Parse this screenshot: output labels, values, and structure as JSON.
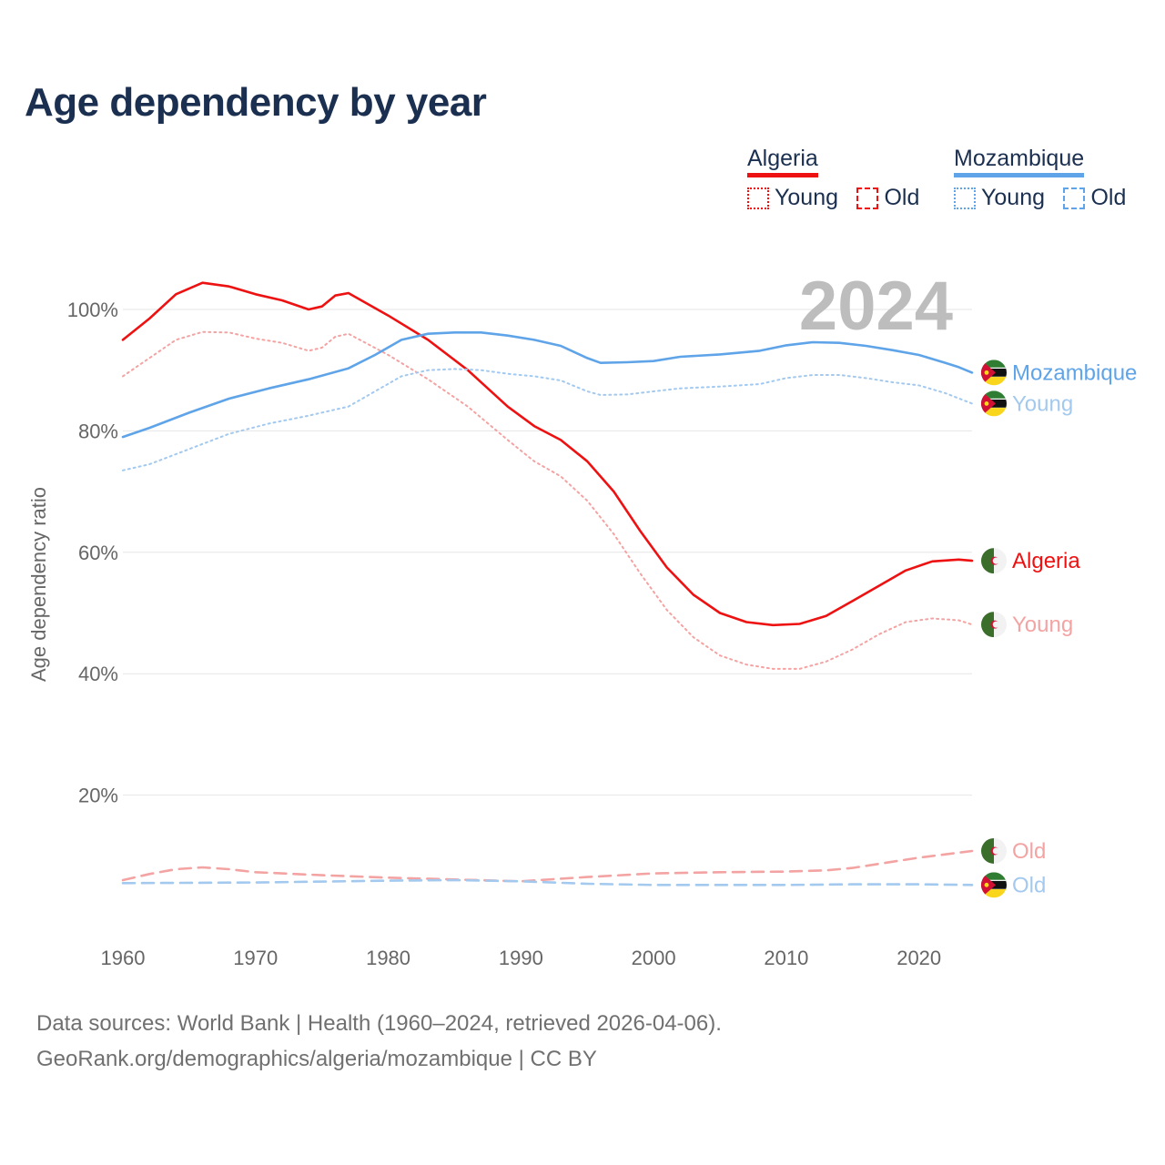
{
  "title": "Age dependency by year",
  "legend": {
    "groups": [
      {
        "name": "Algeria",
        "color": "#ee1111",
        "items": [
          {
            "label": "Young",
            "style": "dotted",
            "color": "#ee1111"
          },
          {
            "label": "Old",
            "style": "dashed",
            "color": "#ee1111"
          }
        ]
      },
      {
        "name": "Mozambique",
        "color": "#5fa4e8",
        "items": [
          {
            "label": "Young",
            "style": "dotted",
            "color": "#5fa4e8"
          },
          {
            "label": "Old",
            "style": "dashed",
            "color": "#5fa4e8"
          }
        ]
      }
    ]
  },
  "footer": {
    "line1": "Data sources: World Bank | Health (1960–2024, retrieved 2026-04-06).",
    "line2": "GeoRank.org/demographics/algeria/mozambique | CC BY"
  },
  "flag_icons": {
    "Algeria": "algeria-flag-icon",
    "Mozambique": "mozambique-flag-icon"
  },
  "chart_data": {
    "type": "line",
    "title": "Age dependency by year",
    "ylabel": "Age dependency ratio",
    "xlabel": "",
    "year_label": "2024",
    "xlim": [
      1960,
      2024
    ],
    "ylim": [
      0,
      110
    ],
    "x_ticks": [
      1960,
      1970,
      1980,
      1990,
      2000,
      2010,
      2020
    ],
    "y_ticks": [
      20,
      40,
      60,
      80,
      100
    ],
    "y_tick_labels": [
      "20%",
      "40%",
      "60%",
      "80%",
      "100%"
    ],
    "grid": true,
    "series": [
      {
        "name": "Algeria",
        "label": "Algeria",
        "country": "Algeria",
        "style": "solid",
        "color": "#ee1111",
        "points": [
          [
            1960,
            95
          ],
          [
            1962,
            98.5
          ],
          [
            1964,
            102.5
          ],
          [
            1966,
            104.4
          ],
          [
            1968,
            103.8
          ],
          [
            1970,
            102.5
          ],
          [
            1972,
            101.5
          ],
          [
            1974,
            100
          ],
          [
            1975,
            100.5
          ],
          [
            1976,
            102.3
          ],
          [
            1977,
            102.7
          ],
          [
            1980,
            99
          ],
          [
            1983,
            95
          ],
          [
            1986,
            90
          ],
          [
            1989,
            84
          ],
          [
            1991,
            80.8
          ],
          [
            1993,
            78.5
          ],
          [
            1995,
            75
          ],
          [
            1997,
            70
          ],
          [
            1999,
            63.5
          ],
          [
            2001,
            57.5
          ],
          [
            2003,
            53
          ],
          [
            2005,
            50
          ],
          [
            2007,
            48.5
          ],
          [
            2009,
            48
          ],
          [
            2011,
            48.2
          ],
          [
            2013,
            49.5
          ],
          [
            2015,
            52
          ],
          [
            2017,
            54.5
          ],
          [
            2019,
            57
          ],
          [
            2021,
            58.5
          ],
          [
            2023,
            58.8
          ],
          [
            2024,
            58.6
          ]
        ]
      },
      {
        "name": "Algeria Young",
        "label": "Young",
        "country": "Algeria",
        "style": "dotted",
        "color": "#f4a3a3",
        "points": [
          [
            1960,
            89
          ],
          [
            1962,
            92
          ],
          [
            1964,
            95
          ],
          [
            1966,
            96.3
          ],
          [
            1968,
            96.2
          ],
          [
            1970,
            95.2
          ],
          [
            1972,
            94.5
          ],
          [
            1974,
            93.2
          ],
          [
            1975,
            93.7
          ],
          [
            1976,
            95.5
          ],
          [
            1977,
            96
          ],
          [
            1980,
            92.5
          ],
          [
            1983,
            88.5
          ],
          [
            1986,
            84
          ],
          [
            1989,
            78.5
          ],
          [
            1991,
            75
          ],
          [
            1993,
            72.5
          ],
          [
            1995,
            68.5
          ],
          [
            1997,
            63
          ],
          [
            1999,
            56.5
          ],
          [
            2001,
            50.5
          ],
          [
            2003,
            46
          ],
          [
            2005,
            43
          ],
          [
            2007,
            41.5
          ],
          [
            2009,
            40.8
          ],
          [
            2011,
            40.8
          ],
          [
            2013,
            42
          ],
          [
            2015,
            44
          ],
          [
            2017,
            46.5
          ],
          [
            2019,
            48.5
          ],
          [
            2021,
            49.1
          ],
          [
            2023,
            48.8
          ],
          [
            2024,
            48.1
          ]
        ]
      },
      {
        "name": "Algeria Old",
        "label": "Old",
        "country": "Algeria",
        "style": "dashed",
        "color": "#f4a3a3",
        "points": [
          [
            1960,
            6
          ],
          [
            1962,
            7
          ],
          [
            1964,
            7.8
          ],
          [
            1966,
            8.1
          ],
          [
            1968,
            7.8
          ],
          [
            1970,
            7.3
          ],
          [
            1975,
            6.8
          ],
          [
            1980,
            6.4
          ],
          [
            1985,
            6.1
          ],
          [
            1990,
            5.8
          ],
          [
            1995,
            6.5
          ],
          [
            2000,
            7.1
          ],
          [
            2005,
            7.3
          ],
          [
            2010,
            7.4
          ],
          [
            2013,
            7.6
          ],
          [
            2015,
            8
          ],
          [
            2020,
            9.7
          ],
          [
            2024,
            10.8
          ]
        ]
      },
      {
        "name": "Mozambique",
        "label": "Mozambique",
        "country": "Mozambique",
        "style": "solid",
        "color": "#5fa4e8",
        "points": [
          [
            1960,
            79
          ],
          [
            1962,
            80.5
          ],
          [
            1965,
            83
          ],
          [
            1968,
            85.3
          ],
          [
            1971,
            87
          ],
          [
            1974,
            88.5
          ],
          [
            1977,
            90.3
          ],
          [
            1979,
            92.5
          ],
          [
            1981,
            95
          ],
          [
            1983,
            96
          ],
          [
            1985,
            96.2
          ],
          [
            1987,
            96.2
          ],
          [
            1989,
            95.7
          ],
          [
            1991,
            95
          ],
          [
            1993,
            94
          ],
          [
            1995,
            92
          ],
          [
            1996,
            91.2
          ],
          [
            1998,
            91.3
          ],
          [
            2000,
            91.5
          ],
          [
            2002,
            92.2
          ],
          [
            2005,
            92.6
          ],
          [
            2008,
            93.2
          ],
          [
            2010,
            94.1
          ],
          [
            2012,
            94.6
          ],
          [
            2014,
            94.5
          ],
          [
            2016,
            94
          ],
          [
            2018,
            93.3
          ],
          [
            2020,
            92.5
          ],
          [
            2022,
            91.2
          ],
          [
            2023,
            90.5
          ],
          [
            2024,
            89.6
          ]
        ]
      },
      {
        "name": "Mozambique Young",
        "label": "Young",
        "country": "Mozambique",
        "style": "dotted",
        "color": "#a3c9ef",
        "points": [
          [
            1960,
            73.5
          ],
          [
            1962,
            74.5
          ],
          [
            1965,
            77
          ],
          [
            1968,
            79.5
          ],
          [
            1971,
            81.2
          ],
          [
            1974,
            82.5
          ],
          [
            1977,
            84
          ],
          [
            1979,
            86.5
          ],
          [
            1981,
            89
          ],
          [
            1983,
            90
          ],
          [
            1985,
            90.2
          ],
          [
            1987,
            90
          ],
          [
            1989,
            89.4
          ],
          [
            1991,
            89
          ],
          [
            1993,
            88.3
          ],
          [
            1995,
            86.5
          ],
          [
            1996,
            85.9
          ],
          [
            1998,
            86
          ],
          [
            2000,
            86.5
          ],
          [
            2002,
            87
          ],
          [
            2005,
            87.3
          ],
          [
            2008,
            87.7
          ],
          [
            2010,
            88.7
          ],
          [
            2012,
            89.2
          ],
          [
            2014,
            89.2
          ],
          [
            2016,
            88.7
          ],
          [
            2018,
            88
          ],
          [
            2020,
            87.5
          ],
          [
            2022,
            86.2
          ],
          [
            2024,
            84.5
          ]
        ]
      },
      {
        "name": "Mozambique Old",
        "label": "Old",
        "country": "Mozambique",
        "style": "dashed",
        "color": "#a3c9ef",
        "points": [
          [
            1960,
            5.5
          ],
          [
            1970,
            5.6
          ],
          [
            1980,
            5.9
          ],
          [
            1985,
            6
          ],
          [
            1990,
            5.8
          ],
          [
            1995,
            5.4
          ],
          [
            2000,
            5.2
          ],
          [
            2005,
            5.2
          ],
          [
            2010,
            5.2
          ],
          [
            2015,
            5.3
          ],
          [
            2020,
            5.3
          ],
          [
            2024,
            5.2
          ]
        ]
      }
    ]
  }
}
